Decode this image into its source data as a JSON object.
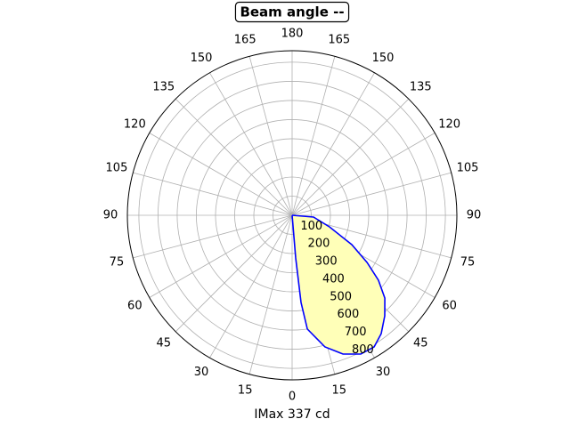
{
  "chart_data": {
    "type": "polar",
    "title": "Beam angle --",
    "xlabel": "IMax 337 cd",
    "rlim": [
      0,
      860
    ],
    "rticks": [
      100,
      200,
      300,
      400,
      500,
      600,
      700,
      800
    ],
    "thetaticks": [
      0,
      15,
      30,
      45,
      60,
      75,
      90,
      105,
      120,
      135,
      150,
      165,
      180,
      {
        "value": 195,
        "label": "165"
      },
      {
        "value": 210,
        "label": "150"
      },
      {
        "value": 225,
        "label": "135"
      },
      {
        "value": 240,
        "label": "120"
      },
      {
        "value": 255,
        "label": "105"
      },
      {
        "value": 270,
        "label": "90"
      },
      {
        "value": 285,
        "label": "75"
      },
      {
        "value": 300,
        "label": "60"
      },
      {
        "value": 315,
        "label": "45"
      },
      {
        "value": 330,
        "label": "30"
      },
      {
        "value": 345,
        "label": "15"
      }
    ],
    "grid": true,
    "series": [
      {
        "color": "#0000ff",
        "fill": "#ffffb8",
        "theta": [
          0,
          85.2,
          72.8,
          63.8,
          57.8,
          53.0,
          48.2,
          42.6,
          36.9,
          31.9,
          26.3,
          20.1,
          14.0,
          7.6,
          5.8,
          4.8,
          0
        ],
        "r": [
          0,
          112,
          204,
          347,
          462,
          564,
          649,
          714,
          774,
          810,
          809,
          772,
          709,
          600,
          458,
          224,
          0
        ]
      }
    ]
  }
}
